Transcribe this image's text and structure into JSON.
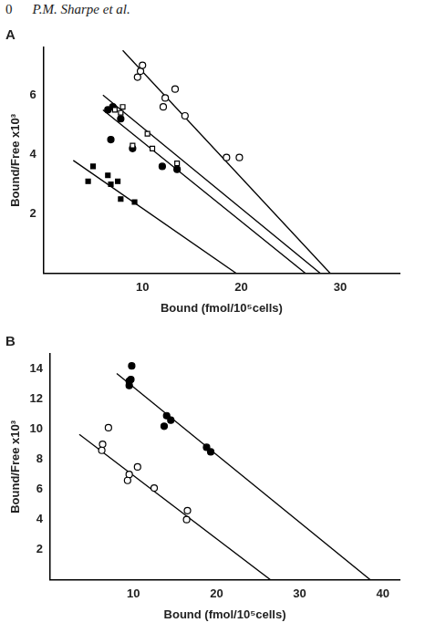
{
  "header": {
    "page": "0",
    "running_title": "P.M. Sharpe et al."
  },
  "chart_data": [
    {
      "type": "scatter",
      "title": "A",
      "x_label": "Bound (fmol/10⁵cells)",
      "y_label": "Bound/Free x10³",
      "xlim": [
        0,
        36
      ],
      "xticks": [
        10,
        20,
        30
      ],
      "ylim": [
        0,
        7.6
      ],
      "yticks": [
        2,
        4,
        6
      ],
      "grid": false,
      "series": [
        {
          "type": "scatter",
          "marker": "open_circle",
          "color": "#000000",
          "x": [
            9.5,
            9.8,
            10.0,
            12.3,
            12.1,
            13.3,
            14.3,
            18.5,
            19.8
          ],
          "values": [
            6.6,
            6.8,
            7.0,
            5.9,
            5.6,
            6.2,
            5.3,
            3.9,
            3.9
          ]
        },
        {
          "type": "scatter",
          "marker": "open_square",
          "color": "#000000",
          "x": [
            7.2,
            7.8,
            8.0,
            9.0,
            10.5,
            11.0,
            13.5
          ],
          "values": [
            5.5,
            5.4,
            5.6,
            4.3,
            4.7,
            4.2,
            3.7
          ]
        },
        {
          "type": "scatter",
          "marker": "filled_circle",
          "color": "#000000",
          "x": [
            6.5,
            7.0,
            6.8,
            7.8,
            9.0,
            12.0,
            13.5
          ],
          "values": [
            5.5,
            5.6,
            4.5,
            5.2,
            4.2,
            3.6,
            3.5
          ]
        },
        {
          "type": "scatter",
          "marker": "filled_square",
          "color": "#000000",
          "x": [
            5.0,
            4.5,
            6.5,
            6.8,
            7.5,
            7.8,
            9.2
          ],
          "values": [
            3.6,
            3.1,
            3.3,
            3.0,
            3.1,
            2.5,
            2.4
          ]
        },
        {
          "type": "line",
          "line_style": "solid",
          "marker": "none",
          "color": "#000000",
          "x": [
            8,
            29
          ],
          "values": [
            7.5,
            0
          ]
        },
        {
          "type": "line",
          "line_style": "solid",
          "marker": "none",
          "color": "#000000",
          "x": [
            6,
            28
          ],
          "values": [
            6.0,
            0
          ]
        },
        {
          "type": "line",
          "line_style": "solid",
          "marker": "none",
          "color": "#000000",
          "x": [
            6,
            26.5
          ],
          "values": [
            5.5,
            0
          ]
        },
        {
          "type": "line",
          "line_style": "solid",
          "marker": "none",
          "color": "#000000",
          "x": [
            3,
            19.5
          ],
          "values": [
            3.8,
            0
          ]
        }
      ]
    },
    {
      "type": "scatter",
      "title": "B",
      "x_label": "Bound (fmol/10⁵cells)",
      "y_label": "Bound/Free x10³",
      "xlim": [
        0,
        42
      ],
      "xticks": [
        10,
        20,
        30,
        40
      ],
      "ylim": [
        0,
        15
      ],
      "yticks": [
        2,
        4,
        6,
        8,
        10,
        12,
        14
      ],
      "grid": false,
      "series": [
        {
          "type": "scatter",
          "marker": "filled_circle",
          "color": "#000000",
          "x": [
            9.8,
            9.5,
            9.5,
            9.7,
            14.0,
            14.5,
            13.7,
            18.8,
            19.3
          ],
          "values": [
            14.2,
            13.2,
            12.9,
            13.3,
            10.9,
            10.6,
            10.2,
            8.8,
            8.5
          ]
        },
        {
          "type": "scatter",
          "marker": "open_circle",
          "color": "#000000",
          "x": [
            7.0,
            6.3,
            6.2,
            9.5,
            9.3,
            10.5,
            12.5,
            16.5,
            16.4
          ],
          "values": [
            10.1,
            9.0,
            8.6,
            7.0,
            6.6,
            7.5,
            6.1,
            4.6,
            4.0
          ]
        },
        {
          "type": "line",
          "line_style": "solid",
          "marker": "none",
          "color": "#000000",
          "x": [
            8,
            38.5
          ],
          "values": [
            13.7,
            0
          ]
        },
        {
          "type": "line",
          "line_style": "solid",
          "marker": "none",
          "color": "#000000",
          "x": [
            3.5,
            26.5
          ],
          "values": [
            9.66,
            0
          ]
        }
      ]
    }
  ]
}
